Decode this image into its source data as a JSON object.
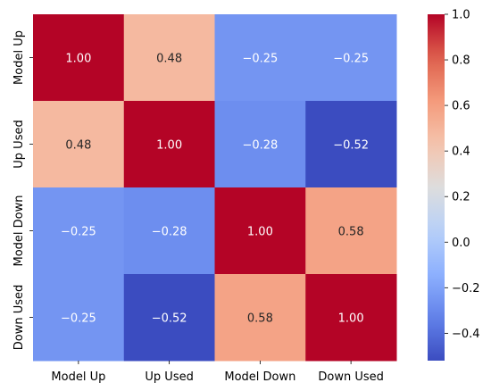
{
  "chart_data": {
    "type": "heatmap",
    "title": "",
    "xlabel": "",
    "ylabel": "",
    "x_categories": [
      "Model Up",
      "Up Used",
      "Model Down",
      "Down Used"
    ],
    "y_categories": [
      "Model Up",
      "Up Used",
      "Model Down",
      "Down Used"
    ],
    "values": [
      [
        1.0,
        0.48,
        -0.25,
        -0.25
      ],
      [
        0.48,
        1.0,
        -0.28,
        -0.52
      ],
      [
        -0.25,
        -0.28,
        1.0,
        0.58
      ],
      [
        -0.25,
        -0.52,
        0.58,
        1.0
      ]
    ],
    "cell_labels": [
      [
        "1.00",
        "0.48",
        "−0.25",
        "−0.25"
      ],
      [
        "0.48",
        "1.00",
        "−0.28",
        "−0.52"
      ],
      [
        "−0.25",
        "−0.28",
        "1.00",
        "0.58"
      ],
      [
        "−0.25",
        "−0.52",
        "0.58",
        "1.00"
      ]
    ],
    "colormap": "coolwarm",
    "color_range": [
      -0.52,
      1.0
    ],
    "colorbar": {
      "ticks": [
        1.0,
        0.8,
        0.6,
        0.4,
        0.2,
        0.0,
        -0.2,
        -0.4
      ],
      "tick_labels": [
        "1.0",
        "0.8",
        "0.6",
        "0.4",
        "0.2",
        "0.0",
        "−0.2",
        "−0.4"
      ]
    },
    "grid": false,
    "legend": "colorbar-right"
  }
}
